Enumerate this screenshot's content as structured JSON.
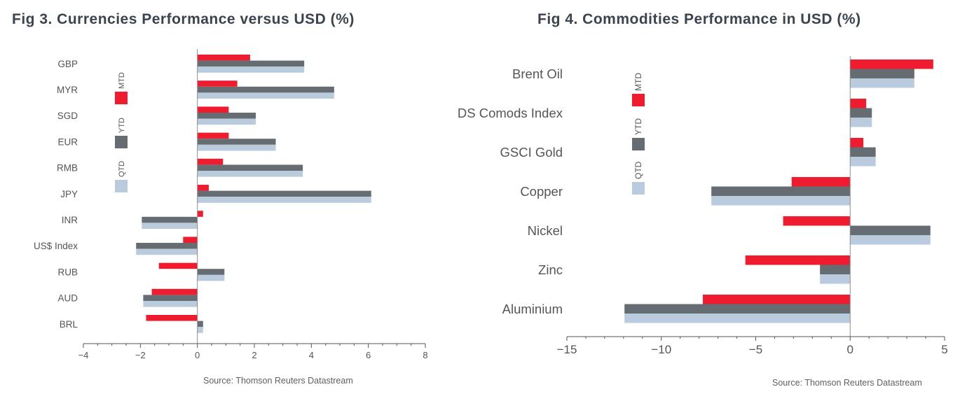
{
  "colors": {
    "MTD": "#ee1c2e",
    "YTD": "#666d72",
    "QTD": "#b9cbdc"
  },
  "charts": [
    {
      "title": "Fig 3. Currencies Performance versus USD (%)",
      "source": "Source: Thomson Reuters Datastream",
      "legend": [
        "MTD",
        "YTD",
        "QTD"
      ]
    },
    {
      "title": "Fig 4. Commodities Performance in USD (%)",
      "source": "Source: Thomson Reuters Datastream",
      "legend": [
        "MTD",
        "YTD",
        "QTD"
      ]
    }
  ],
  "chart_data": [
    {
      "type": "bar",
      "orientation": "horizontal",
      "title": "Fig 3. Currencies Performance versus USD (%)",
      "categories": [
        "GBP",
        "MYR",
        "SGD",
        "EUR",
        "RMB",
        "JPY",
        "INR",
        "US$ Index",
        "RUB",
        "AUD",
        "BRL"
      ],
      "series": [
        {
          "name": "MTD",
          "values": [
            1.85,
            1.4,
            1.1,
            1.1,
            0.9,
            0.4,
            0.2,
            -0.5,
            -1.35,
            -1.6,
            -1.8
          ]
        },
        {
          "name": "YTD",
          "values": [
            3.75,
            4.8,
            2.05,
            2.75,
            3.7,
            6.1,
            -1.95,
            -2.15,
            0.95,
            -1.9,
            0.2
          ]
        },
        {
          "name": "QTD",
          "values": [
            3.75,
            4.8,
            2.05,
            2.75,
            3.7,
            6.1,
            -1.95,
            -2.15,
            0.95,
            -1.9,
            0.2
          ]
        }
      ],
      "xlim": [
        -4,
        8
      ],
      "xticks": [
        -4,
        -2,
        0,
        2,
        4,
        6,
        8
      ],
      "grid": false,
      "legend_position": "left"
    },
    {
      "type": "bar",
      "orientation": "horizontal",
      "title": "Fig 4. Commodities Performance in USD (%)",
      "categories": [
        "Brent Oil",
        "DS Comods Index",
        "GSCI Gold",
        "Copper",
        "Nickel",
        "Zinc",
        "Aluminium"
      ],
      "series": [
        {
          "name": "MTD",
          "values": [
            4.4,
            0.85,
            0.7,
            -3.1,
            -3.55,
            -5.55,
            -7.8
          ]
        },
        {
          "name": "YTD",
          "values": [
            3.4,
            1.15,
            1.35,
            -7.35,
            4.25,
            -1.6,
            -11.95
          ]
        },
        {
          "name": "QTD",
          "values": [
            3.4,
            1.15,
            1.35,
            -7.35,
            4.25,
            -1.6,
            -11.95
          ]
        }
      ],
      "xlim": [
        -15,
        5
      ],
      "xticks": [
        -15,
        -10,
        -5,
        0,
        5
      ],
      "grid": false,
      "legend_position": "left"
    }
  ]
}
